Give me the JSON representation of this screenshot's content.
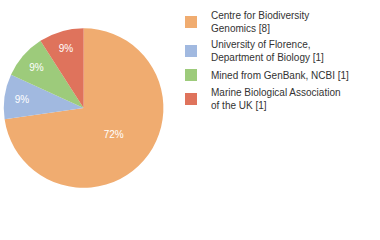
{
  "chart_data": {
    "type": "pie",
    "categories": [
      "Centre for Biodiversity Genomics [8]",
      "University of Florence, Department of Biology [1]",
      "Mined from GenBank, NCBI [1]",
      "Marine Biological Association of the UK [1]"
    ],
    "values": [
      72,
      9,
      9,
      9
    ],
    "value_labels": [
      "72%",
      "9%",
      "9%",
      "9%"
    ],
    "colors": [
      "#f0ac70",
      "#a1b9e0",
      "#9dcb7b",
      "#df735c"
    ],
    "data_labels": true,
    "legend": "upper right"
  }
}
